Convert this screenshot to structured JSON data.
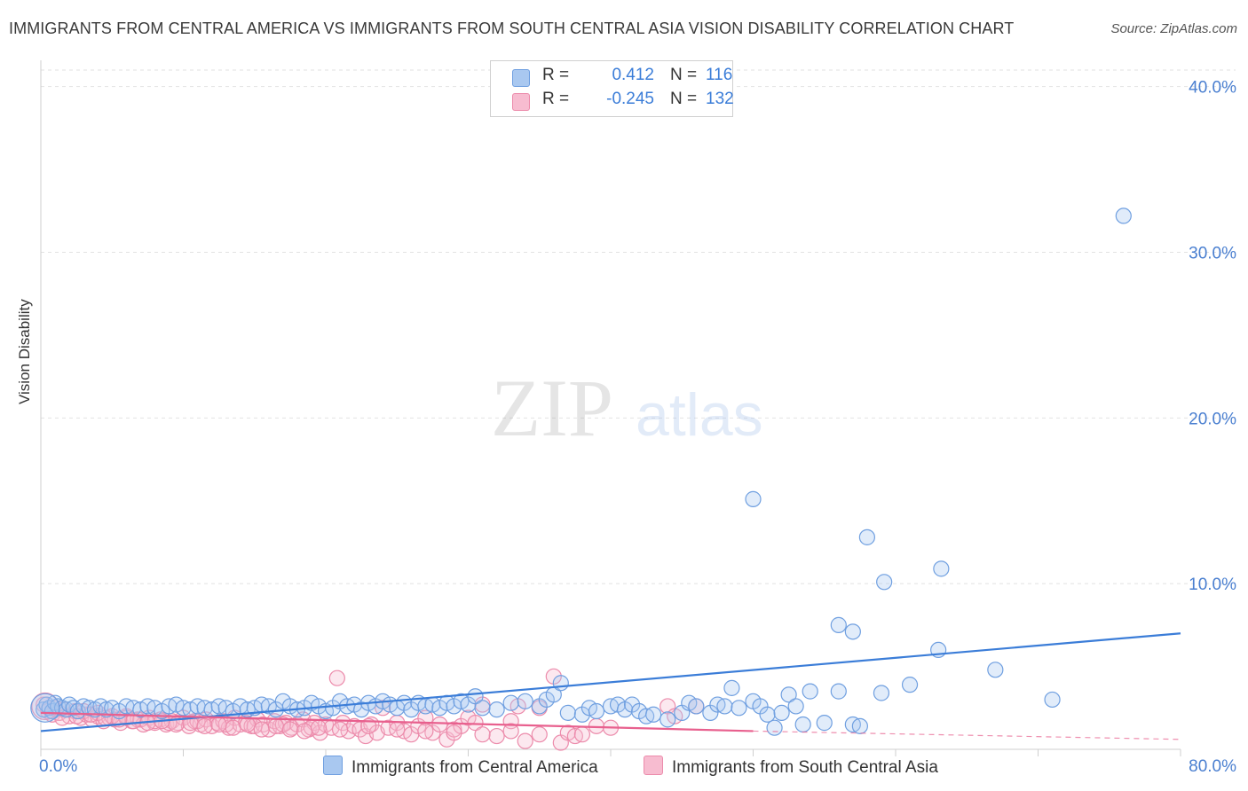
{
  "title": "IMMIGRANTS FROM CENTRAL AMERICA VS IMMIGRANTS FROM SOUTH CENTRAL ASIA VISION DISABILITY CORRELATION CHART",
  "source": "Source: ZipAtlas.com",
  "watermark": {
    "zip": "ZIP",
    "atlas": "atlas"
  },
  "legend": {
    "r_label": "R =",
    "n_label": "N =",
    "rows": [
      {
        "r": "0.412",
        "n": "116",
        "color": "#a9c8f0",
        "border": "#6f9fe0"
      },
      {
        "r": "-0.245",
        "n": "132",
        "color": "#f7bcd0",
        "border": "#ec8bab"
      }
    ]
  },
  "bottom_legend": {
    "s1": "Immigrants from Central America",
    "s2": "Immigrants from South Central Asia"
  },
  "colors": {
    "blue": "#3b7dd8",
    "pink": "#e8608e",
    "axis_text": "#4a7fd0"
  },
  "chart_data": {
    "type": "scatter",
    "title": "IMMIGRANTS FROM CENTRAL AMERICA VS IMMIGRANTS FROM SOUTH CENTRAL ASIA VISION DISABILITY CORRELATION CHART",
    "xlabel": "",
    "ylabel": "Vision Disability",
    "xlim": [
      0,
      80
    ],
    "ylim": [
      0,
      41
    ],
    "x_tick_labels": [
      "0.0%",
      "80.0%"
    ],
    "y_ticks": [
      10,
      20,
      30,
      40
    ],
    "y_tick_labels": [
      "10.0%",
      "20.0%",
      "30.0%",
      "40.0%"
    ],
    "grid": true,
    "series": [
      {
        "name": "Immigrants from Central America",
        "color": "#6f9fe0",
        "trend": [
          [
            0,
            1.1
          ],
          [
            80,
            7.0
          ]
        ],
        "points": [
          [
            0.2,
            2.4
          ],
          [
            0.4,
            2.7
          ],
          [
            0.6,
            2.5
          ],
          [
            0.8,
            2.3
          ],
          [
            1.0,
            2.8
          ],
          [
            1.2,
            2.6
          ],
          [
            1.5,
            2.5
          ],
          [
            1.8,
            2.4
          ],
          [
            2.0,
            2.7
          ],
          [
            2.3,
            2.5
          ],
          [
            2.6,
            2.3
          ],
          [
            3.0,
            2.6
          ],
          [
            3.4,
            2.5
          ],
          [
            3.8,
            2.4
          ],
          [
            4.2,
            2.6
          ],
          [
            4.6,
            2.4
          ],
          [
            5.0,
            2.5
          ],
          [
            5.5,
            2.3
          ],
          [
            6.0,
            2.6
          ],
          [
            6.5,
            2.5
          ],
          [
            7.0,
            2.4
          ],
          [
            7.5,
            2.6
          ],
          [
            8.0,
            2.5
          ],
          [
            8.5,
            2.3
          ],
          [
            9.0,
            2.6
          ],
          [
            9.5,
            2.7
          ],
          [
            10,
            2.5
          ],
          [
            10.5,
            2.4
          ],
          [
            11,
            2.6
          ],
          [
            11.5,
            2.5
          ],
          [
            12,
            2.4
          ],
          [
            12.5,
            2.6
          ],
          [
            13,
            2.5
          ],
          [
            13.5,
            2.3
          ],
          [
            14,
            2.6
          ],
          [
            14.5,
            2.4
          ],
          [
            15,
            2.5
          ],
          [
            15.5,
            2.7
          ],
          [
            16,
            2.6
          ],
          [
            16.5,
            2.4
          ],
          [
            17,
            2.9
          ],
          [
            17.5,
            2.6
          ],
          [
            18,
            2.4
          ],
          [
            18.5,
            2.5
          ],
          [
            19,
            2.8
          ],
          [
            19.5,
            2.6
          ],
          [
            20,
            2.3
          ],
          [
            20.5,
            2.5
          ],
          [
            21,
            2.9
          ],
          [
            21.5,
            2.6
          ],
          [
            22,
            2.7
          ],
          [
            22.5,
            2.4
          ],
          [
            23,
            2.8
          ],
          [
            23.5,
            2.6
          ],
          [
            24,
            2.9
          ],
          [
            24.5,
            2.7
          ],
          [
            25,
            2.5
          ],
          [
            25.5,
            2.8
          ],
          [
            26,
            2.4
          ],
          [
            26.5,
            2.8
          ],
          [
            27,
            2.6
          ],
          [
            27.5,
            2.7
          ],
          [
            28,
            2.5
          ],
          [
            28.5,
            2.8
          ],
          [
            29,
            2.6
          ],
          [
            29.5,
            2.9
          ],
          [
            30,
            2.7
          ],
          [
            30.5,
            3.2
          ],
          [
            31,
            2.5
          ],
          [
            32,
            2.4
          ],
          [
            33,
            2.8
          ],
          [
            34,
            2.9
          ],
          [
            35,
            2.6
          ],
          [
            35.5,
            3.0
          ],
          [
            36,
            3.3
          ],
          [
            36.5,
            4.0
          ],
          [
            37,
            2.2
          ],
          [
            38,
            2.1
          ],
          [
            38.5,
            2.5
          ],
          [
            39,
            2.3
          ],
          [
            40,
            2.6
          ],
          [
            40.5,
            2.7
          ],
          [
            41,
            2.4
          ],
          [
            41.5,
            2.7
          ],
          [
            42,
            2.3
          ],
          [
            42.5,
            2.0
          ],
          [
            43,
            2.1
          ],
          [
            44,
            1.8
          ],
          [
            45,
            2.2
          ],
          [
            45.5,
            2.8
          ],
          [
            46,
            2.6
          ],
          [
            47,
            2.2
          ],
          [
            47.5,
            2.7
          ],
          [
            48,
            2.6
          ],
          [
            48.5,
            3.7
          ],
          [
            49,
            2.5
          ],
          [
            50,
            2.9
          ],
          [
            50.5,
            2.6
          ],
          [
            51,
            2.1
          ],
          [
            51.5,
            1.3
          ],
          [
            52,
            2.2
          ],
          [
            52.5,
            3.3
          ],
          [
            53,
            2.6
          ],
          [
            53.5,
            1.5
          ],
          [
            54,
            3.5
          ],
          [
            55,
            1.6
          ],
          [
            56,
            3.5
          ],
          [
            57,
            1.5
          ],
          [
            57.5,
            1.4
          ],
          [
            59,
            3.4
          ],
          [
            61,
            3.9
          ],
          [
            63,
            6.0
          ],
          [
            67,
            4.8
          ],
          [
            71,
            3.0
          ],
          [
            50,
            15.1
          ],
          [
            56,
            7.5
          ],
          [
            57,
            7.1
          ],
          [
            58,
            12.8
          ],
          [
            59.2,
            10.1
          ],
          [
            63.2,
            10.9
          ],
          [
            76,
            32.2
          ]
        ]
      },
      {
        "name": "Immigrants from South Central Asia",
        "color": "#ec8bab",
        "trend": [
          [
            0,
            2.2
          ],
          [
            50,
            1.1
          ]
        ],
        "trend_dashed": [
          [
            50,
            1.1
          ],
          [
            80,
            0.6
          ]
        ],
        "points": [
          [
            0.2,
            2.7
          ],
          [
            0.5,
            2.3
          ],
          [
            0.8,
            2.1
          ],
          [
            1.0,
            2.5
          ],
          [
            1.3,
            2.2
          ],
          [
            1.6,
            2.4
          ],
          [
            2.0,
            2.0
          ],
          [
            2.4,
            2.3
          ],
          [
            2.8,
            1.9
          ],
          [
            3.2,
            2.1
          ],
          [
            3.6,
            1.8
          ],
          [
            4.0,
            2.0
          ],
          [
            4.4,
            1.7
          ],
          [
            4.8,
            1.9
          ],
          [
            5.2,
            1.8
          ],
          [
            5.6,
            1.6
          ],
          [
            6.0,
            2.0
          ],
          [
            6.4,
            1.7
          ],
          [
            6.8,
            1.8
          ],
          [
            7.2,
            1.5
          ],
          [
            7.6,
            1.9
          ],
          [
            8.0,
            1.6
          ],
          [
            8.4,
            1.8
          ],
          [
            8.8,
            1.5
          ],
          [
            9.2,
            1.7
          ],
          [
            9.6,
            1.6
          ],
          [
            10,
            1.9
          ],
          [
            10.4,
            1.4
          ],
          [
            10.8,
            1.7
          ],
          [
            11.2,
            1.5
          ],
          [
            11.6,
            1.8
          ],
          [
            12,
            1.4
          ],
          [
            12.4,
            1.6
          ],
          [
            12.8,
            1.7
          ],
          [
            13.2,
            1.3
          ],
          [
            13.6,
            1.9
          ],
          [
            14,
            1.5
          ],
          [
            14.4,
            1.6
          ],
          [
            14.8,
            1.4
          ],
          [
            15.2,
            1.8
          ],
          [
            15.6,
            1.5
          ],
          [
            16,
            1.2
          ],
          [
            16.4,
            1.7
          ],
          [
            16.8,
            1.4
          ],
          [
            17.2,
            1.6
          ],
          [
            17.6,
            1.3
          ],
          [
            18,
            1.5
          ],
          [
            18.4,
            1.8
          ],
          [
            18.8,
            1.2
          ],
          [
            19.2,
            1.6
          ],
          [
            19.6,
            1.0
          ],
          [
            20,
            1.5
          ],
          [
            20.4,
            1.3
          ],
          [
            20.8,
            4.3
          ],
          [
            21.2,
            1.6
          ],
          [
            21.6,
            1.1
          ],
          [
            22,
            1.4
          ],
          [
            22.4,
            1.2
          ],
          [
            22.8,
            0.8
          ],
          [
            23.2,
            1.5
          ],
          [
            23.6,
            1.0
          ],
          [
            24,
            2.5
          ],
          [
            24.4,
            1.3
          ],
          [
            25,
            1.6
          ],
          [
            25.5,
            1.1
          ],
          [
            26,
            0.9
          ],
          [
            26.5,
            1.4
          ],
          [
            27,
            1.9
          ],
          [
            27.5,
            1.0
          ],
          [
            28,
            1.5
          ],
          [
            28.5,
            0.6
          ],
          [
            29,
            1.2
          ],
          [
            29.5,
            1.4
          ],
          [
            30,
            1.9
          ],
          [
            30.5,
            1.6
          ],
          [
            31,
            2.7
          ],
          [
            32,
            0.8
          ],
          [
            33,
            1.7
          ],
          [
            33.5,
            2.6
          ],
          [
            34,
            0.5
          ],
          [
            35,
            2.5
          ],
          [
            36,
            4.4
          ],
          [
            36.5,
            0.4
          ],
          [
            37,
            1.0
          ],
          [
            37.5,
            0.8
          ],
          [
            38,
            0.9
          ],
          [
            39,
            1.4
          ],
          [
            40,
            1.3
          ],
          [
            44,
            2.6
          ],
          [
            44.5,
            2.0
          ],
          [
            46,
            2.6
          ],
          [
            3,
            2.3
          ],
          [
            4,
            2.2
          ],
          [
            5,
            2.0
          ],
          [
            6,
            1.9
          ],
          [
            7,
            1.8
          ],
          [
            8,
            1.7
          ],
          [
            9,
            1.6
          ],
          [
            11,
            1.7
          ],
          [
            13,
            1.5
          ],
          [
            15,
            1.4
          ],
          [
            17,
            1.5
          ],
          [
            19,
            1.3
          ],
          [
            21,
            1.2
          ],
          [
            23,
            1.4
          ],
          [
            25,
            1.2
          ],
          [
            27,
            1.1
          ],
          [
            29,
            1.0
          ],
          [
            31,
            0.9
          ],
          [
            33,
            1.1
          ],
          [
            35,
            0.9
          ],
          [
            1.5,
            1.9
          ],
          [
            2.5,
            2.0
          ],
          [
            3.5,
            2.1
          ],
          [
            4.5,
            1.9
          ],
          [
            5.5,
            1.8
          ],
          [
            6.5,
            1.7
          ],
          [
            7.5,
            1.6
          ],
          [
            8.5,
            1.7
          ],
          [
            9.5,
            1.5
          ],
          [
            10.5,
            1.6
          ],
          [
            11.5,
            1.4
          ],
          [
            12.5,
            1.5
          ],
          [
            13.5,
            1.3
          ],
          [
            14.5,
            1.5
          ],
          [
            15.5,
            1.2
          ],
          [
            16.5,
            1.4
          ],
          [
            17.5,
            1.2
          ],
          [
            18.5,
            1.1
          ],
          [
            19.5,
            1.3
          ]
        ]
      }
    ]
  }
}
